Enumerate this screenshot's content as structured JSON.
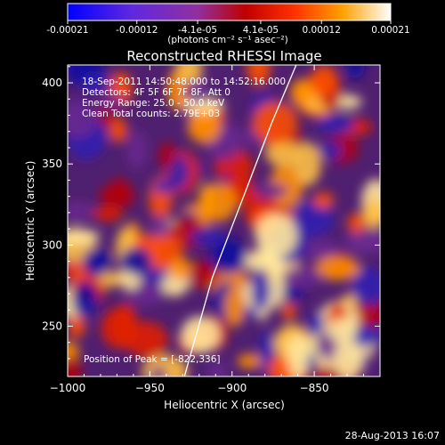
{
  "chart_data": {
    "type": "heatmap",
    "title": "Reconstructed RHESSI Image",
    "xlabel": "Heliocentric X (arcsec)",
    "ylabel": "Heliocentric Y (arcsec)",
    "xlim": [
      -1000,
      -810
    ],
    "ylim": [
      219,
      411
    ],
    "x_ticks": [
      -1000,
      -950,
      -900,
      -850
    ],
    "x_tick_labels": [
      "−1000",
      "−950",
      "−900",
      "−850"
    ],
    "y_ticks": [
      250,
      300,
      350,
      400
    ],
    "y_tick_labels": [
      "250",
      "300",
      "350",
      "400"
    ],
    "colorbar": {
      "range": [
        -0.00021,
        0.00021
      ],
      "tick_values": [
        -0.00021,
        -0.00012,
        -4.1e-05,
        4.1e-05,
        0.00012,
        0.00021
      ],
      "tick_labels": [
        "-0.00021",
        "-0.00012",
        "-4.1e-05",
        "4.1e-05",
        "0.00012",
        "0.00021"
      ],
      "unit_label": "(photons cm⁻² s⁻¹ asec⁻²)",
      "colors": [
        "#0000ff",
        "#8030d0",
        "#c00000",
        "#ff4000",
        "#ffa000",
        "#ffffff"
      ]
    },
    "annotations": [
      "18-Sep-2011 14:50:48.000 to 14:52:16.000",
      "Detectors: 4F 5F 6F 7F 8F, Att 0",
      "Energy Range: 25.0 - 50.0 keV",
      "Clean    Total counts: 2.79E+03"
    ],
    "peak_label": "Position of Peak = [-822,336]",
    "peak": {
      "x": -822,
      "y": 336
    },
    "limb_curve": [
      {
        "x": -929,
        "y": 219
      },
      {
        "x": -912,
        "y": 280
      },
      {
        "x": -893,
        "y": 330
      },
      {
        "x": -876,
        "y": 375
      },
      {
        "x": -861,
        "y": 411
      }
    ]
  },
  "footer": {
    "timestamp": "28-Aug-2013 16:07"
  }
}
